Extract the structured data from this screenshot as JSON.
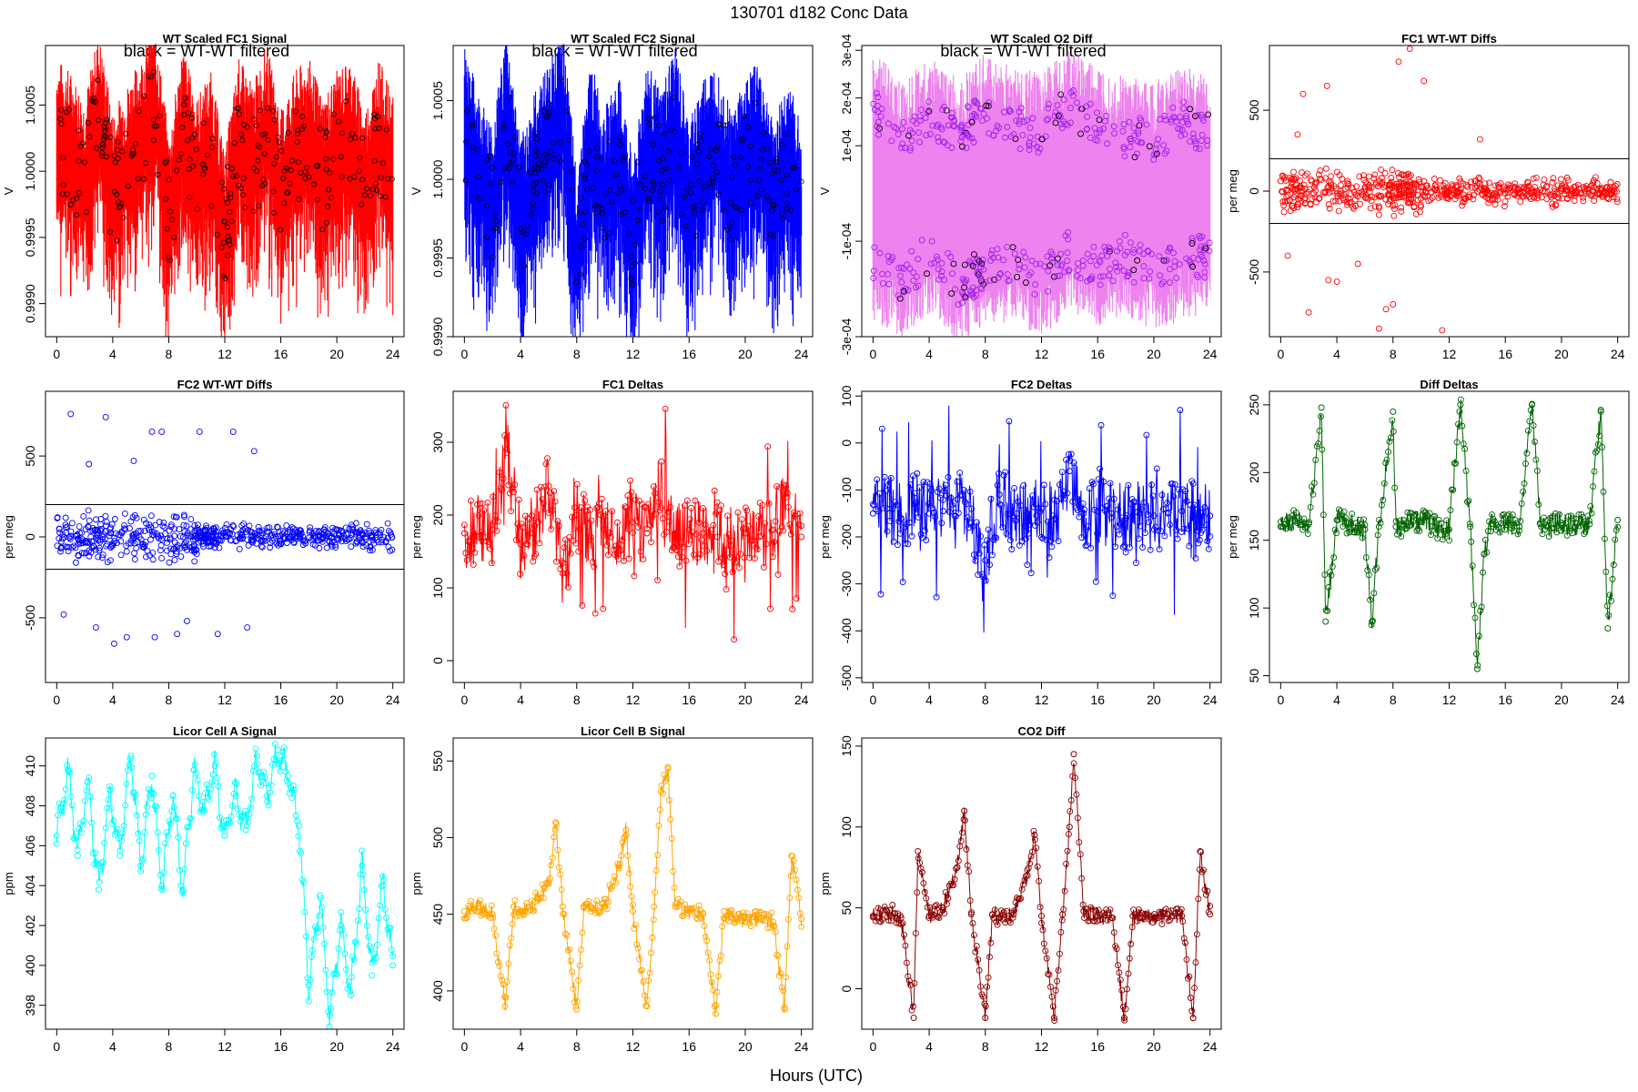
{
  "figure": {
    "title": "130701    d182   Conc Data",
    "xlabel": "Hours (UTC)"
  },
  "chart_data": [
    {
      "id": "fc1-signal",
      "type": "line",
      "title": "WT Scaled FC1 Signal",
      "ylabel": "V",
      "annotation": "black = WT-WT filtered",
      "color": "#ff0000",
      "marker_color": "#ff0000",
      "overlay_color": "#000000",
      "xlim": [
        -0.8,
        24.8
      ],
      "ylim": [
        0.99875,
        1.00095
      ],
      "xticks": [
        0,
        4,
        8,
        12,
        16,
        20,
        24
      ],
      "yticks": [
        0.999,
        0.9995,
        1.0,
        1.0005
      ],
      "yticklabels": [
        "0.9990",
        "0.9995",
        "1.0000",
        "1.0005"
      ],
      "series": [
        {
          "name": "signal",
          "x": [
            0,
            1,
            2,
            3,
            4,
            5,
            6,
            7,
            8,
            9,
            10,
            11,
            12,
            13,
            14,
            15,
            16,
            17,
            18,
            19,
            20,
            21,
            22,
            23,
            24
          ],
          "y": [
            1.0002,
            1.0001,
            0.9999,
            1.0004,
            0.9998,
            1.0,
            1.0002,
            1.0005,
            0.9996,
            1.0003,
            0.9999,
            1.0001,
            0.9995,
            1.0002,
            1.0,
            1.0003,
            0.9998,
            1.0001,
            1.0002,
            0.9999,
            1.0001,
            1.0002,
            0.9998,
            1.0002,
            0.9999
          ]
        }
      ]
    },
    {
      "id": "fc2-signal",
      "type": "line",
      "title": "WT Scaled FC2 Signal",
      "ylabel": "V",
      "annotation": "black = WT-WT filtered",
      "color": "#0000ff",
      "marker_color": "#0000ff",
      "overlay_color": "#000000",
      "xlim": [
        -0.8,
        24.8
      ],
      "ylim": [
        0.999,
        1.00085
      ],
      "xticks": [
        0,
        4,
        8,
        12,
        16,
        20,
        24
      ],
      "yticks": [
        0.999,
        0.9995,
        1.0,
        1.0005
      ],
      "yticklabels": [
        "0.9990",
        "0.9995",
        "1.0000",
        "1.0005"
      ],
      "series": [
        {
          "name": "signal",
          "x": [
            0,
            1,
            2,
            3,
            4,
            5,
            6,
            7,
            8,
            9,
            10,
            11,
            12,
            13,
            14,
            15,
            16,
            17,
            18,
            19,
            20,
            21,
            22,
            23,
            24
          ],
          "y": [
            1.0003,
            1.0,
            0.9998,
            1.0004,
            0.9997,
            1.0,
            1.0002,
            1.0004,
            0.9995,
            1.0002,
            0.9999,
            1.0001,
            0.9996,
            1.0002,
            1.0,
            1.0003,
            0.9998,
            1.0001,
            1.0002,
            0.9999,
            1.0001,
            1.0002,
            0.9998,
            1.0001,
            0.9998
          ]
        }
      ]
    },
    {
      "id": "o2-diff",
      "type": "line",
      "title": "WT Scaled O2 Diff",
      "ylabel": "V",
      "annotation": "black = WT-WT filtered",
      "color": "#ee82ee",
      "marker_color": "#a020f0",
      "overlay_color": "#000000",
      "xlim": [
        -0.8,
        24.8
      ],
      "ylim": [
        -0.0003,
        0.00031
      ],
      "xticks": [
        0,
        4,
        8,
        12,
        16,
        20,
        24
      ],
      "yticks": [
        -0.0003,
        -0.0001,
        0.0001,
        0.0002,
        0.0003
      ],
      "yticklabels": [
        "-3e-04",
        "-1e-04",
        "1e-04",
        "2e-04",
        "3e-04"
      ],
      "series": [
        {
          "name": "upper",
          "x": [
            0,
            2,
            4,
            6,
            8,
            10,
            12,
            14,
            16,
            18,
            20,
            22,
            24
          ],
          "y": [
            0.00022,
            0.00015,
            0.0002,
            0.00016,
            0.00021,
            0.00018,
            0.00017,
            0.00022,
            0.00018,
            0.00016,
            0.00015,
            0.00019,
            0.00016
          ]
        },
        {
          "name": "lower",
          "x": [
            0,
            2,
            4,
            6,
            8,
            10,
            12,
            14,
            16,
            18,
            20,
            22,
            24
          ],
          "y": [
            -0.00018,
            -0.00022,
            -0.00017,
            -0.00023,
            -0.0002,
            -0.00018,
            -0.00022,
            -0.00016,
            -0.0002,
            -0.00017,
            -0.00021,
            -0.00018,
            -0.00017
          ]
        }
      ]
    },
    {
      "id": "fc1-wtwt",
      "type": "scatter",
      "title": "FC1 WT-WT Diffs",
      "ylabel": "per meg",
      "color": "#ff0000",
      "xlim": [
        -0.8,
        24.8
      ],
      "ylim": [
        -900,
        900
      ],
      "xticks": [
        0,
        4,
        8,
        12,
        16,
        20,
        24
      ],
      "yticks": [
        -500,
        0,
        500
      ],
      "yticklabels": [
        "-500",
        "0",
        "500"
      ],
      "hlines": [
        200,
        -200
      ],
      "series": [
        {
          "name": "diffs",
          "x": [
            0.5,
            1.2,
            2.0,
            3.3,
            4.0,
            5.5,
            7.0,
            7.5,
            8.4,
            9.2,
            10.2,
            11.5,
            14.2,
            3.4,
            1.6,
            8.0,
            9.5
          ],
          "y": [
            -400,
            350,
            -750,
            650,
            -560,
            -450,
            -850,
            -730,
            800,
            880,
            680,
            -860,
            320,
            -550,
            600,
            -700,
            -100
          ]
        }
      ]
    },
    {
      "id": "fc2-wtwt",
      "type": "scatter",
      "title": "FC2 WT-WT Diffs",
      "ylabel": "per meg",
      "color": "#0000ff",
      "xlim": [
        -0.8,
        24.8
      ],
      "ylim": [
        -900,
        900
      ],
      "xticks": [
        0,
        4,
        8,
        12,
        16,
        20,
        24
      ],
      "yticks": [
        -500,
        0,
        500
      ],
      "yticklabels": [
        "-500",
        "0",
        "500"
      ],
      "hlines": [
        200,
        -200
      ],
      "series": [
        {
          "name": "diffs",
          "x": [
            0.5,
            1.0,
            2.3,
            3.5,
            4.1,
            5.0,
            5.5,
            7.0,
            7.5,
            8.6,
            9.3,
            10.2,
            11.5,
            12.6,
            13.6,
            14.1,
            2.8,
            6.8
          ],
          "y": [
            -480,
            760,
            450,
            740,
            -660,
            -620,
            470,
            -620,
            650,
            -600,
            -520,
            650,
            -600,
            650,
            -560,
            530,
            -560,
            650
          ]
        }
      ]
    },
    {
      "id": "fc1-deltas",
      "type": "line",
      "title": "FC1 Deltas",
      "ylabel": "per meg",
      "color": "#ff0000",
      "xlim": [
        -0.8,
        24.8
      ],
      "ylim": [
        -30,
        370
      ],
      "xticks": [
        0,
        4,
        8,
        12,
        16,
        20,
        24
      ],
      "yticks": [
        0,
        100,
        200,
        300
      ],
      "yticklabels": [
        "0",
        "100",
        "200",
        "300"
      ],
      "series": [
        {
          "name": "deltas",
          "x": [
            0,
            1,
            2,
            3,
            4,
            5,
            6,
            7,
            8,
            9,
            10,
            11,
            12,
            13,
            14,
            15,
            16,
            17,
            18,
            19,
            20,
            21,
            22,
            23,
            24
          ],
          "y": [
            175,
            170,
            180,
            290,
            160,
            185,
            240,
            120,
            200,
            170,
            180,
            160,
            190,
            175,
            210,
            170,
            180,
            175,
            170,
            165,
            175,
            170,
            180,
            230,
            170
          ]
        }
      ]
    },
    {
      "id": "fc2-deltas",
      "type": "line",
      "title": "FC2 Deltas",
      "ylabel": "per meg",
      "color": "#0000ff",
      "xlim": [
        -0.8,
        24.8
      ],
      "ylim": [
        -510,
        110
      ],
      "xticks": [
        0,
        4,
        8,
        12,
        16,
        20,
        24
      ],
      "yticks": [
        -500,
        -400,
        -300,
        -200,
        -100,
        0,
        100
      ],
      "yticklabels": [
        "-500",
        "-400",
        "-300",
        "-200",
        "-100",
        "0",
        "100"
      ],
      "series": [
        {
          "name": "deltas",
          "x": [
            0,
            1,
            2,
            3,
            4,
            5,
            6,
            7,
            8,
            9,
            10,
            11,
            12,
            13,
            14,
            15,
            16,
            17,
            18,
            19,
            20,
            21,
            22,
            23,
            24
          ],
          "y": [
            -150,
            -140,
            -160,
            -130,
            -150,
            -145,
            -120,
            -170,
            -250,
            -110,
            -160,
            -150,
            -140,
            -160,
            -60,
            -150,
            -145,
            -150,
            -160,
            -150,
            -155,
            -150,
            -145,
            -150,
            -155
          ]
        }
      ]
    },
    {
      "id": "diff-deltas",
      "type": "line",
      "title": "Diff Deltas",
      "ylabel": "per meg",
      "color": "#006400",
      "xlim": [
        -0.8,
        24.8
      ],
      "ylim": [
        45,
        260
      ],
      "xticks": [
        0,
        4,
        8,
        12,
        16,
        20,
        24
      ],
      "yticks": [
        50,
        100,
        150,
        200,
        250
      ],
      "yticklabels": [
        "50",
        "100",
        "150",
        "200",
        "250"
      ],
      "series": [
        {
          "name": "deltas",
          "x": [
            0,
            1,
            2,
            2.9,
            3.2,
            4,
            5,
            6,
            6.5,
            7,
            8,
            8.2,
            9,
            10,
            11,
            12,
            12.8,
            13.5,
            14,
            14.5,
            15,
            16,
            17,
            17.9,
            18.5,
            19,
            20,
            21,
            22,
            22.8,
            23.3,
            24
          ],
          "y": [
            160,
            165,
            162,
            248,
            90,
            165,
            162,
            158,
            90,
            160,
            245,
            160,
            163,
            165,
            160,
            158,
            250,
            160,
            55,
            140,
            162,
            163,
            160,
            250,
            162,
            160,
            163,
            160,
            162,
            245,
            85,
            165
          ]
        }
      ]
    },
    {
      "id": "licor-a",
      "type": "line",
      "title": "Licor Cell A Signal",
      "ylabel": "ppm",
      "color": "#00ffff",
      "xlim": [
        -0.8,
        24.8
      ],
      "ylim": [
        396.8,
        411.4
      ],
      "xticks": [
        0,
        4,
        8,
        12,
        16,
        20,
        24
      ],
      "yticks": [
        398,
        400,
        402,
        404,
        406,
        408,
        410
      ],
      "yticklabels": [
        "398",
        "400",
        "402",
        "404",
        "406",
        "408",
        "410"
      ],
      "series": [
        {
          "name": "cellA",
          "x": [
            0,
            0.8,
            1.5,
            2.2,
            3.0,
            3.8,
            4.5,
            5.3,
            6.0,
            6.8,
            7.5,
            8.3,
            9.0,
            9.8,
            10.5,
            11.3,
            12.0,
            12.8,
            13.5,
            14.3,
            15.0,
            15.8,
            16.5,
            17.3,
            18.0,
            18.8,
            19.5,
            20.3,
            21.0,
            21.8,
            22.5,
            23.3,
            24.0
          ],
          "y": [
            406.5,
            409.8,
            405.5,
            409.2,
            403.8,
            408.8,
            405.5,
            410.5,
            405.0,
            409.5,
            404.0,
            408.5,
            403.8,
            409.8,
            407.8,
            410.0,
            406.5,
            408.5,
            406.8,
            410.5,
            408.5,
            410.8,
            409.5,
            407.0,
            399.0,
            403.5,
            397.5,
            402.0,
            398.5,
            405.0,
            399.5,
            404.0,
            400.0
          ]
        }
      ]
    },
    {
      "id": "licor-b",
      "type": "line",
      "title": "Licor Cell B Signal",
      "ylabel": "ppm",
      "color": "#ffa500",
      "xlim": [
        -0.8,
        24.8
      ],
      "ylim": [
        375,
        565
      ],
      "xticks": [
        0,
        4,
        8,
        12,
        16,
        20,
        24
      ],
      "yticks": [
        400,
        450,
        500,
        550
      ],
      "yticklabels": [
        "400",
        "450",
        "500",
        "550"
      ],
      "series": [
        {
          "name": "cellB",
          "x": [
            0,
            1,
            2,
            2.9,
            3.5,
            4,
            5,
            6,
            6.5,
            7,
            8,
            8.5,
            9,
            10,
            11,
            11.5,
            12,
            13,
            13.5,
            14,
            14.5,
            15,
            16,
            17,
            17.9,
            18.5,
            19,
            20,
            21,
            22,
            22.8,
            23.3,
            24
          ],
          "y": [
            452,
            455,
            450,
            390,
            455,
            452,
            458,
            470,
            510,
            455,
            388,
            455,
            452,
            455,
            480,
            505,
            452,
            390,
            455,
            530,
            545,
            455,
            452,
            450,
            385,
            452,
            448,
            445,
            447,
            445,
            388,
            488,
            447
          ]
        }
      ]
    },
    {
      "id": "co2-diff",
      "type": "line",
      "title": "CO2 Diff",
      "ylabel": "ppm",
      "color": "#8b0000",
      "xlim": [
        -0.8,
        24.8
      ],
      "ylim": [
        -25,
        155
      ],
      "xticks": [
        0,
        4,
        8,
        12,
        16,
        20,
        24
      ],
      "yticks": [
        0,
        50,
        100,
        150
      ],
      "yticklabels": [
        "0",
        "50",
        "100",
        "150"
      ],
      "series": [
        {
          "name": "co2",
          "x": [
            0,
            1,
            2,
            2.9,
            3.2,
            4,
            5,
            6,
            6.5,
            7,
            8,
            8.5,
            9,
            10,
            11,
            11.5,
            12,
            12.9,
            13.5,
            14,
            14.3,
            15,
            16,
            17,
            17.9,
            18.5,
            19,
            20,
            21,
            22,
            22.8,
            23.3,
            24
          ],
          "y": [
            45,
            48,
            44,
            -18,
            85,
            45,
            50,
            75,
            110,
            46,
            -18,
            46,
            44,
            46,
            70,
            95,
            45,
            -18,
            46,
            100,
            145,
            48,
            45,
            44,
            -18,
            45,
            44,
            44,
            46,
            45,
            -18,
            85,
            46
          ]
        }
      ]
    }
  ]
}
